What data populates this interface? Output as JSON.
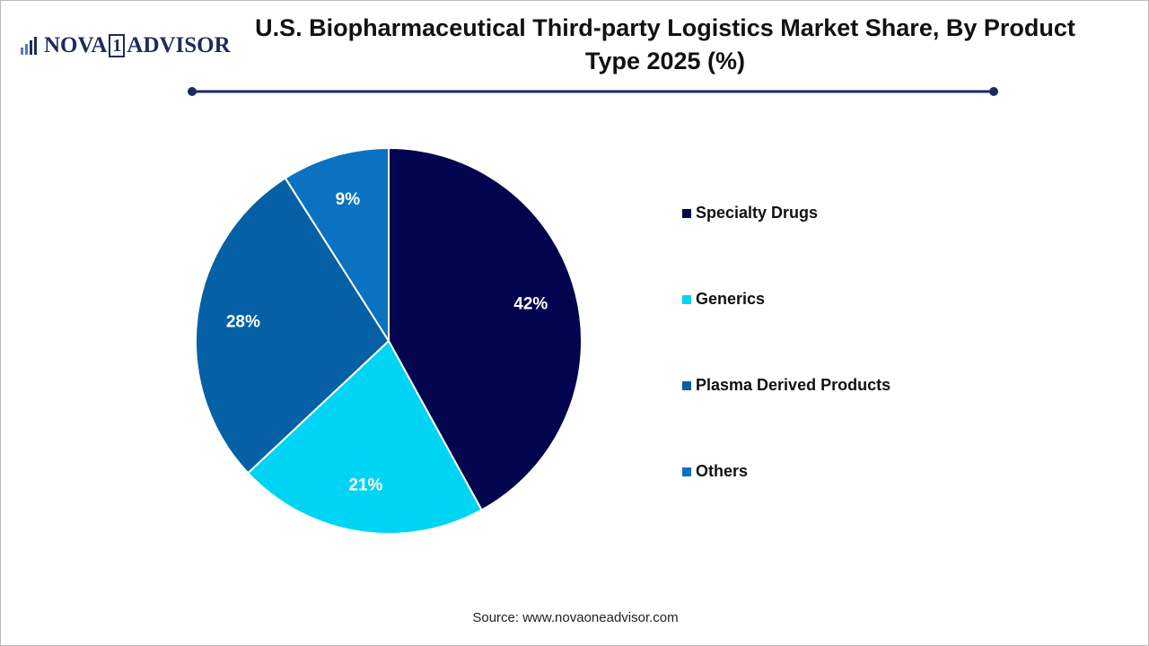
{
  "logo": {
    "left": "NOVA",
    "mark": "1",
    "right": "ADVISOR"
  },
  "chart_data": {
    "type": "pie",
    "title": "U.S. Biopharmaceutical Third-party Logistics Market Share, By Product Type 2025 (%)",
    "categories": [
      "Specialty Drugs",
      "Generics",
      "Plasma Derived Products",
      "Others"
    ],
    "values": [
      42,
      21,
      28,
      9
    ],
    "value_labels": [
      "42%",
      "21%",
      "28%",
      "9%"
    ],
    "colors": [
      "#03044f",
      "#00d4f4",
      "#0660a6",
      "#0a72c1"
    ],
    "legend": "right",
    "source": "Source: www.novaoneadvisor.com"
  }
}
